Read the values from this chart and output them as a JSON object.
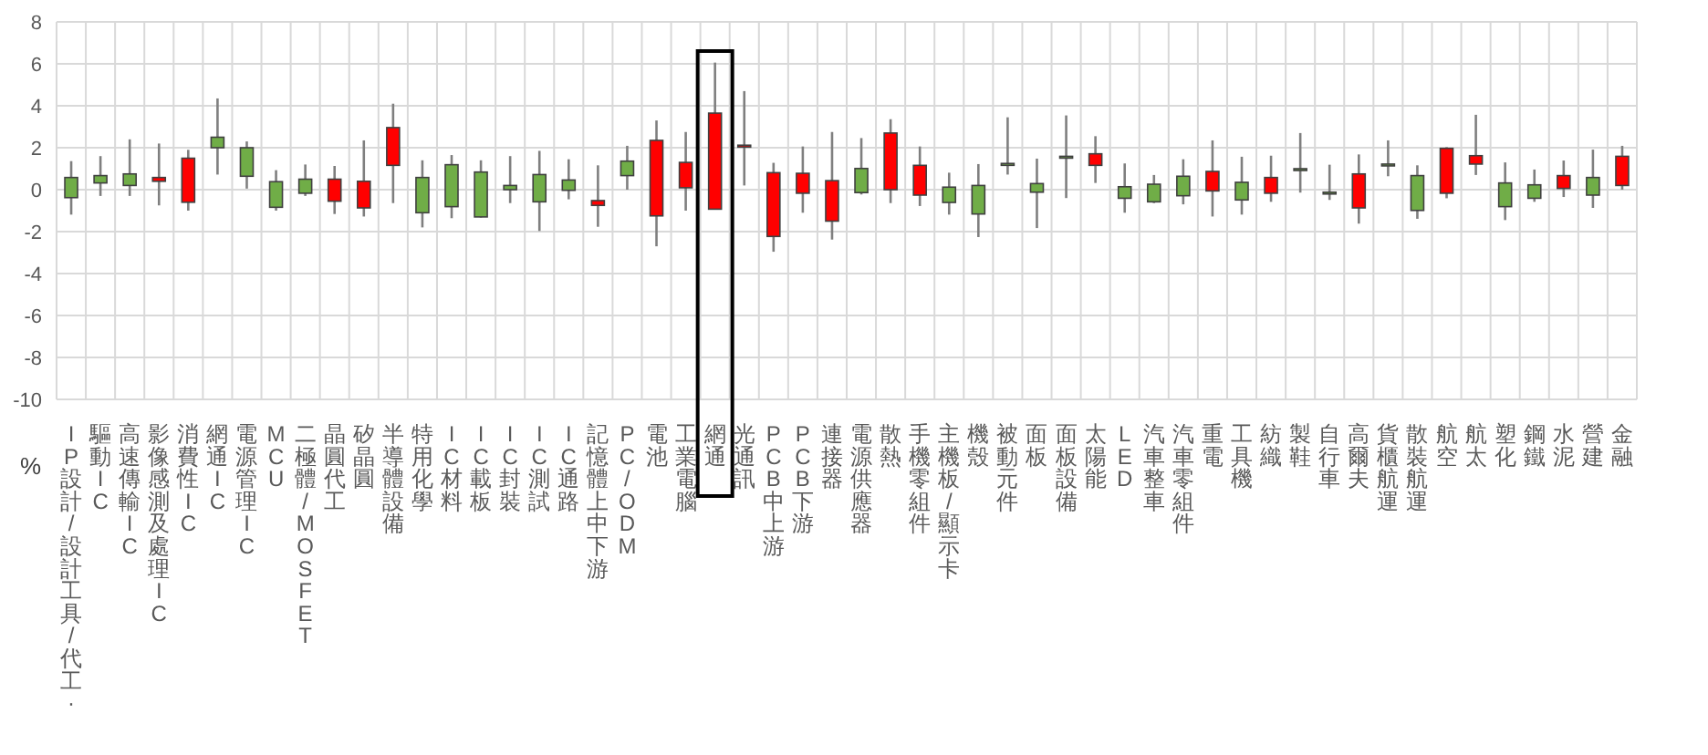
{
  "chart_data": {
    "type": "candlestick",
    "ylabel": "%",
    "ylim": [
      -10,
      8
    ],
    "yticks": [
      -10,
      -8,
      -6,
      -4,
      -2,
      0,
      2,
      4,
      6,
      8
    ],
    "grid": true,
    "categories": [
      "IP設計/設計工具/代工·",
      "驅動IC",
      "高速傳輸IC",
      "影像感測及處理IC",
      "消費性IC",
      "網通IC",
      "電源管理IC",
      "MCU",
      "二極體/MOSFET",
      "晶圓代工",
      "矽晶圓",
      "半導體設備",
      "特用化學",
      "IC材料",
      "IC載板",
      "IC封裝",
      "IC測試",
      "IC通路",
      "記憶體上中下游",
      "PC/ODM",
      "電池",
      "工業電腦",
      "網通",
      "光通訊",
      "PCB中上游",
      "PCB下游",
      "連接器",
      "電源供應器",
      "散熱",
      "手機零組件",
      "主機板/顯示卡",
      "機殼",
      "被動元件",
      "面板",
      "面板設備",
      "太陽能",
      "LED",
      "汽車整車",
      "汽車零組件",
      "重電",
      "工具機",
      "紡織",
      "製鞋",
      "自行車",
      "高爾夫",
      "貨櫃航運",
      "散裝航運",
      "航空",
      "航太",
      "塑化",
      "鋼鐵",
      "水泥",
      "營建",
      "金融"
    ],
    "ohlc": [
      [
        0.58,
        1.36,
        -1.19,
        -0.38
      ],
      [
        0.67,
        1.6,
        -0.3,
        0.32
      ],
      [
        0.75,
        2.4,
        -0.3,
        0.2
      ],
      [
        0.4,
        2.2,
        -0.75,
        0.58
      ],
      [
        -0.6,
        1.9,
        -1.0,
        1.5
      ],
      [
        2.5,
        4.35,
        0.72,
        2.0
      ],
      [
        2.0,
        2.3,
        0.05,
        0.64
      ],
      [
        0.38,
        0.93,
        -1.0,
        -0.84
      ],
      [
        0.5,
        1.2,
        -0.3,
        -0.17
      ],
      [
        -0.55,
        1.13,
        -1.16,
        0.5
      ],
      [
        -0.87,
        2.35,
        -1.28,
        0.4
      ],
      [
        1.16,
        4.1,
        -0.64,
        2.96
      ],
      [
        0.58,
        1.4,
        -1.8,
        -1.1
      ],
      [
        1.19,
        1.65,
        -1.36,
        -0.81
      ],
      [
        0.84,
        1.4,
        -1.33,
        -1.3
      ],
      [
        0.2,
        1.6,
        -0.64,
        0.0
      ],
      [
        0.72,
        1.85,
        -1.97,
        -0.58
      ],
      [
        0.46,
        1.45,
        -0.46,
        -0.03
      ],
      [
        -0.75,
        1.16,
        -1.77,
        -0.52
      ],
      [
        1.36,
        2.09,
        0.0,
        0.67
      ],
      [
        -1.25,
        3.3,
        -2.7,
        2.35
      ],
      [
        0.09,
        2.75,
        -1.0,
        1.3
      ],
      [
        -0.93,
        6.06,
        -0.93,
        3.65
      ],
      [
        2.03,
        4.7,
        0.2,
        2.12
      ],
      [
        -2.23,
        1.28,
        -2.96,
        0.81
      ],
      [
        -0.17,
        2.06,
        -1.1,
        0.78
      ],
      [
        -1.5,
        2.75,
        -2.38,
        0.43
      ],
      [
        1.01,
        2.46,
        -0.23,
        -0.14
      ],
      [
        0.0,
        3.36,
        -0.64,
        2.7
      ],
      [
        -0.26,
        2.06,
        -0.78,
        1.16
      ],
      [
        0.12,
        0.81,
        -1.19,
        -0.61
      ],
      [
        0.2,
        1.22,
        -2.26,
        -1.16
      ],
      [
        1.25,
        3.45,
        0.72,
        1.16
      ],
      [
        0.29,
        1.48,
        -1.83,
        -0.12
      ],
      [
        1.59,
        3.54,
        -0.4,
        1.51
      ],
      [
        1.16,
        2.55,
        0.32,
        1.71
      ],
      [
        0.14,
        1.25,
        -1.1,
        -0.41
      ],
      [
        0.26,
        0.7,
        -0.64,
        -0.58
      ],
      [
        0.64,
        1.45,
        -0.7,
        -0.29
      ],
      [
        -0.06,
        2.35,
        -1.28,
        0.87
      ],
      [
        0.35,
        1.57,
        -1.19,
        -0.49
      ],
      [
        -0.17,
        1.62,
        -0.58,
        0.58
      ],
      [
        1.0,
        2.7,
        -0.14,
        0.96
      ],
      [
        -0.12,
        1.19,
        -0.49,
        -0.2
      ],
      [
        -0.87,
        1.68,
        -1.62,
        0.75
      ],
      [
        1.22,
        2.35,
        0.64,
        1.16
      ],
      [
        0.67,
        1.16,
        -1.39,
        -0.99
      ],
      [
        -0.17,
        2.03,
        -0.41,
        1.97
      ],
      [
        1.22,
        3.57,
        0.7,
        1.62
      ],
      [
        0.32,
        1.3,
        -1.45,
        -0.81
      ],
      [
        0.23,
        0.96,
        -0.58,
        -0.41
      ],
      [
        0.06,
        1.39,
        -0.35,
        0.67
      ],
      [
        0.58,
        1.91,
        -0.87,
        -0.26
      ],
      [
        0.2,
        2.09,
        0.0,
        1.59
      ]
    ],
    "colors": [
      "#70ad47",
      "#70ad47",
      "#70ad47",
      "#ff0000",
      "#ff0000",
      "#70ad47",
      "#70ad47",
      "#70ad47",
      "#70ad47",
      "#ff0000",
      "#ff0000",
      "#ff0000",
      "#70ad47",
      "#70ad47",
      "#70ad47",
      "#70ad47",
      "#70ad47",
      "#70ad47",
      "#ff0000",
      "#70ad47",
      "#ff0000",
      "#ff0000",
      "#ff0000",
      "#ff0000",
      "#ff0000",
      "#ff0000",
      "#ff0000",
      "#70ad47",
      "#ff0000",
      "#ff0000",
      "#70ad47",
      "#70ad47",
      "#70ad47",
      "#70ad47",
      "#70ad47",
      "#ff0000",
      "#70ad47",
      "#70ad47",
      "#70ad47",
      "#ff0000",
      "#70ad47",
      "#ff0000",
      "#70ad47",
      "#70ad47",
      "#ff0000",
      "#70ad47",
      "#70ad47",
      "#ff0000",
      "#ff0000",
      "#70ad47",
      "#70ad47",
      "#ff0000",
      "#70ad47",
      "#ff0000"
    ]
  }
}
